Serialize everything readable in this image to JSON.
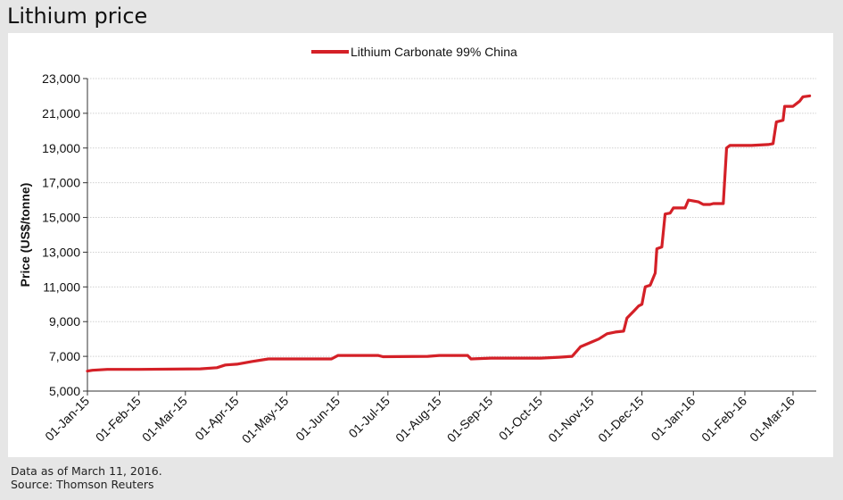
{
  "page": {
    "title": "Lithium price",
    "footer_note": "Data as of March 11, 2016.",
    "footer_source": "Source: Thomson Reuters"
  },
  "colors": {
    "series": "#d42027",
    "background": "#e6e6e6",
    "panel": "#ffffff",
    "grid": "#d0d0d0"
  },
  "chart_data": {
    "type": "line",
    "title": "Lithium price",
    "xlabel": "",
    "ylabel": "Price (US$/tonne)",
    "ylim": [
      5000,
      23000
    ],
    "yticks": [
      5000,
      7000,
      9000,
      11000,
      13000,
      15000,
      17000,
      19000,
      21000,
      23000
    ],
    "ytick_labels": [
      "5,000",
      "7,000",
      "9,000",
      "11,000",
      "13,000",
      "15,000",
      "17,000",
      "19,000",
      "21,000",
      "23,000"
    ],
    "xlim": [
      "2015-01-01",
      "2016-03-15"
    ],
    "xticks": [
      "2015-01-01",
      "2015-02-01",
      "2015-03-01",
      "2015-04-01",
      "2015-05-01",
      "2015-06-01",
      "2015-07-01",
      "2015-08-01",
      "2015-09-01",
      "2015-10-01",
      "2015-11-01",
      "2015-12-01",
      "2016-01-01",
      "2016-02-01",
      "2016-03-01"
    ],
    "xtick_labels": [
      "01-Jan-15",
      "01-Feb-15",
      "01-Mar-15",
      "01-Apr-15",
      "01-May-15",
      "01-Jun-15",
      "01-Jul-15",
      "01-Aug-15",
      "01-Sep-15",
      "01-Oct-15",
      "01-Nov-15",
      "01-Dec-15",
      "01-Jan-16",
      "01-Feb-16",
      "01-Mar-16"
    ],
    "grid": "horizontal",
    "legend_position": "top-center",
    "series": [
      {
        "name": "Lithium Carbonate 99% China",
        "color": "#d42027",
        "points": [
          [
            "2015-01-01",
            6150
          ],
          [
            "2015-01-04",
            6200
          ],
          [
            "2015-01-13",
            6250
          ],
          [
            "2015-02-01",
            6250
          ],
          [
            "2015-03-10",
            6280
          ],
          [
            "2015-03-20",
            6350
          ],
          [
            "2015-03-25",
            6500
          ],
          [
            "2015-04-01",
            6550
          ],
          [
            "2015-04-10",
            6700
          ],
          [
            "2015-04-20",
            6850
          ],
          [
            "2015-05-01",
            6850
          ],
          [
            "2015-05-28",
            6850
          ],
          [
            "2015-06-01",
            7050
          ],
          [
            "2015-06-25",
            7050
          ],
          [
            "2015-06-28",
            6980
          ],
          [
            "2015-07-25",
            7000
          ],
          [
            "2015-08-01",
            7050
          ],
          [
            "2015-08-18",
            7050
          ],
          [
            "2015-08-20",
            6850
          ],
          [
            "2015-09-01",
            6900
          ],
          [
            "2015-10-01",
            6900
          ],
          [
            "2015-10-12",
            6950
          ],
          [
            "2015-10-20",
            7000
          ],
          [
            "2015-10-25",
            7550
          ],
          [
            "2015-10-31",
            7800
          ],
          [
            "2015-11-05",
            8000
          ],
          [
            "2015-11-10",
            8300
          ],
          [
            "2015-11-15",
            8400
          ],
          [
            "2015-11-20",
            8450
          ],
          [
            "2015-11-22",
            9200
          ],
          [
            "2015-11-26",
            9600
          ],
          [
            "2015-11-29",
            9900
          ],
          [
            "2015-12-01",
            10000
          ],
          [
            "2015-12-03",
            11000
          ],
          [
            "2015-12-06",
            11100
          ],
          [
            "2015-12-09",
            11800
          ],
          [
            "2015-12-10",
            13200
          ],
          [
            "2015-12-13",
            13300
          ],
          [
            "2015-12-15",
            15200
          ],
          [
            "2015-12-18",
            15250
          ],
          [
            "2015-12-20",
            15550
          ],
          [
            "2015-12-27",
            15550
          ],
          [
            "2015-12-29",
            16000
          ],
          [
            "2016-01-04",
            15900
          ],
          [
            "2016-01-07",
            15750
          ],
          [
            "2016-01-11",
            15750
          ],
          [
            "2016-01-13",
            15800
          ],
          [
            "2016-01-19",
            15800
          ],
          [
            "2016-01-21",
            19000
          ],
          [
            "2016-01-23",
            19150
          ],
          [
            "2016-02-05",
            19150
          ],
          [
            "2016-02-15",
            19200
          ],
          [
            "2016-02-18",
            19250
          ],
          [
            "2016-02-20",
            20500
          ],
          [
            "2016-02-24",
            20600
          ],
          [
            "2016-02-25",
            21400
          ],
          [
            "2016-03-01",
            21400
          ],
          [
            "2016-03-05",
            21700
          ],
          [
            "2016-03-07",
            21950
          ],
          [
            "2016-03-11",
            22000
          ]
        ]
      }
    ]
  }
}
